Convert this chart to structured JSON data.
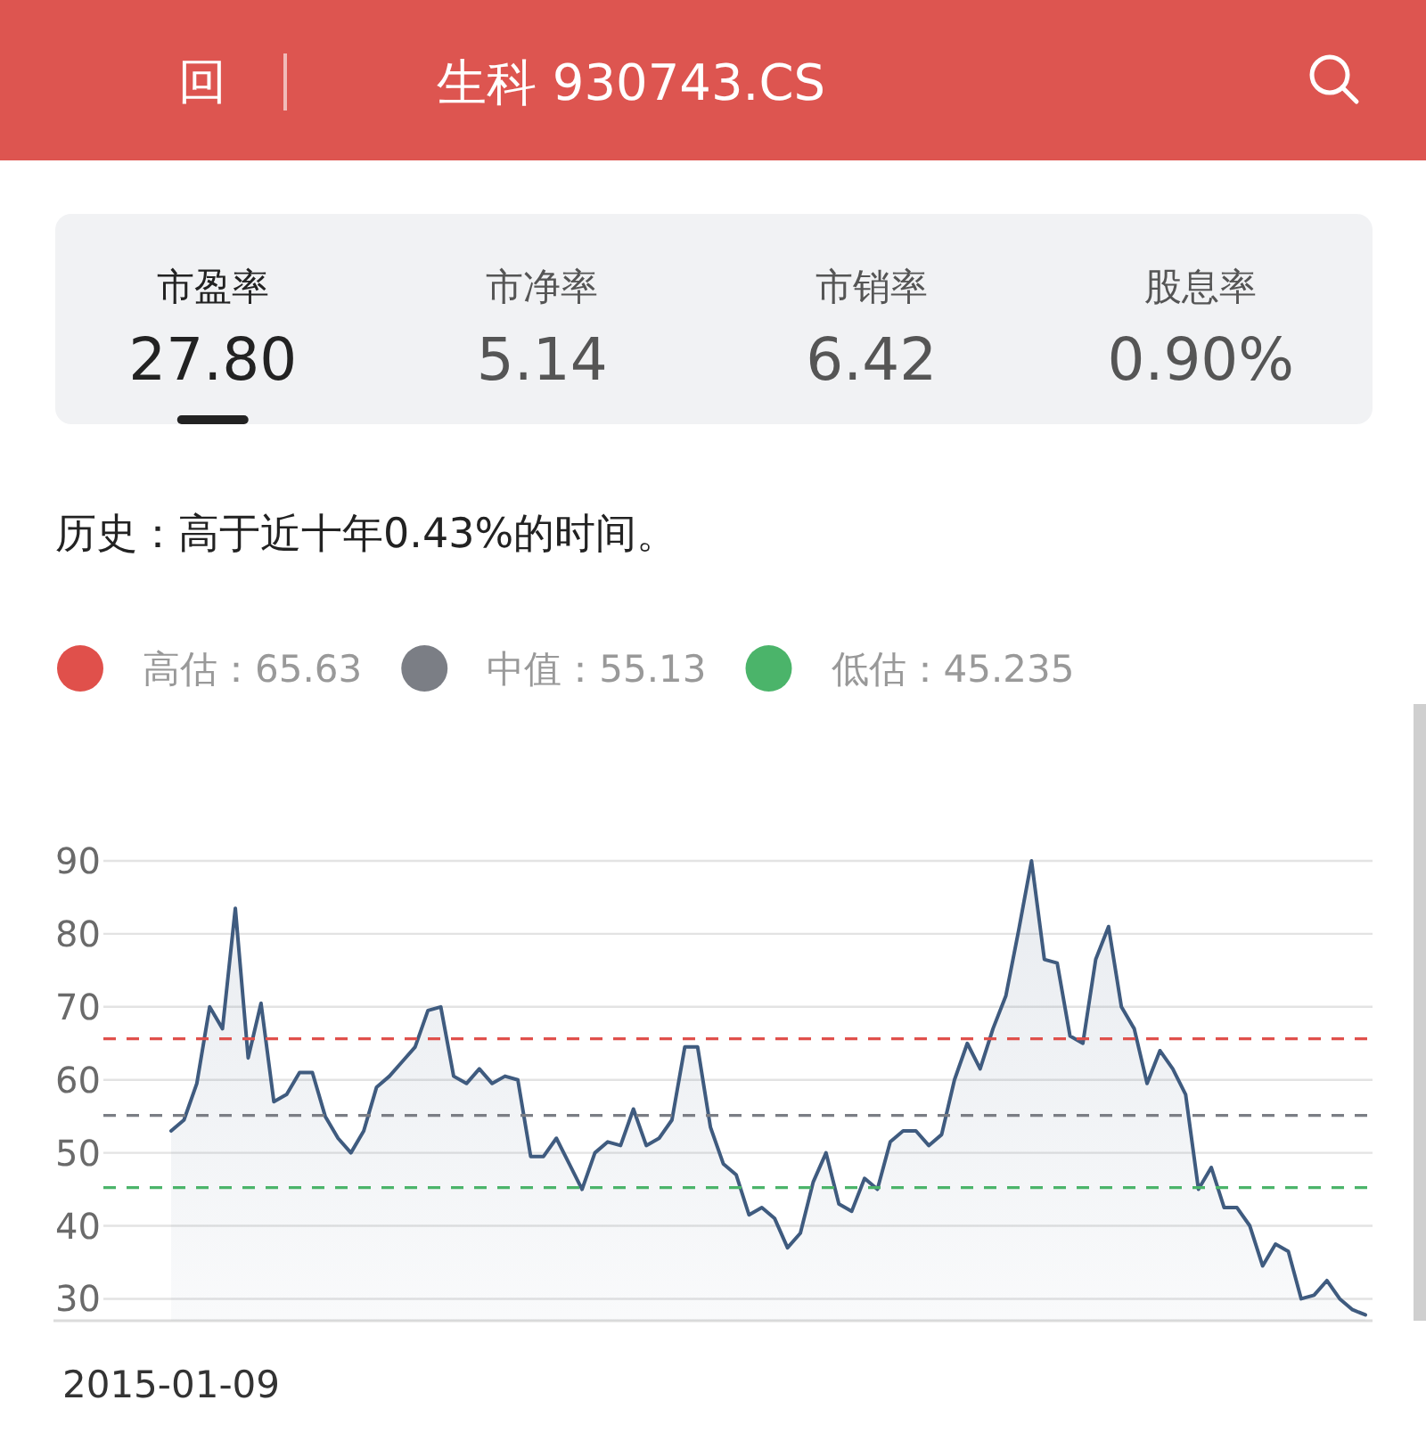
{
  "chart_data": {
    "type": "area",
    "title": "生科 930743.CS",
    "annotations": [
      "回",
      "市盈率",
      "27.80",
      "市净率",
      "5.14",
      "市销率",
      "6.42",
      "股息率",
      "0.90%",
      "历史：高于近十年0.43%的时间。"
    ],
    "categories": [
      "2015-01-09",
      null,
      null,
      null,
      null,
      null,
      null,
      null,
      null,
      null,
      null,
      null,
      null,
      null,
      null,
      null,
      null,
      null,
      null,
      null,
      null,
      null,
      null,
      null,
      null,
      null,
      null,
      null,
      null,
      null,
      null,
      null,
      null,
      null,
      null,
      null,
      null,
      null,
      null,
      null,
      null,
      null,
      null,
      null,
      null,
      null,
      null,
      null,
      null,
      null,
      null,
      null,
      null,
      null,
      null,
      null,
      null,
      null,
      null,
      null,
      null,
      null,
      null,
      null,
      null,
      null,
      null,
      null,
      null,
      null,
      null,
      null,
      null,
      null,
      null,
      null,
      null,
      null,
      null,
      null,
      null,
      null,
      null,
      null,
      null,
      null,
      null,
      null,
      null,
      null,
      null,
      null,
      null,
      null
    ],
    "series": [
      {
        "color": "#3f5b7f",
        "values": [
          53,
          54.5,
          59.5,
          70,
          67,
          83.5,
          63,
          70.5,
          57,
          58,
          61,
          61,
          55,
          52,
          50,
          53,
          59,
          60.5,
          62.5,
          64.5,
          69.5,
          70,
          60.5,
          59.5,
          61.5,
          59.5,
          60.5,
          60,
          49.5,
          49.5,
          52,
          48.5,
          45,
          50,
          51.5,
          51,
          56,
          51,
          52,
          54.5,
          64.5,
          64.5,
          53.5,
          48.5,
          47,
          41.5,
          42.5,
          41,
          37,
          39,
          46,
          50,
          43,
          42,
          46.5,
          45,
          51.5,
          53,
          53,
          51,
          52.5,
          60,
          65,
          61.5,
          67,
          71.5,
          80.5,
          90,
          76.5,
          76,
          66,
          65,
          76.5,
          81,
          70,
          67,
          59.5,
          64,
          61.5,
          58,
          45,
          48,
          42.5,
          42.5,
          40,
          34.5,
          37.5,
          36.5,
          30,
          30.5,
          32.5,
          30,
          28.5,
          27.8
        ]
      }
    ],
    "ylim": [
      27,
      90
    ],
    "yticks": [
      30,
      40,
      50,
      60,
      70,
      80,
      90
    ],
    "grid": "y",
    "legend": "top left",
    "ref_lines": [
      {
        "axis": "y",
        "value": 65.63,
        "label": "高估：65.63",
        "color": "#e0504b",
        "line_style": "dashed"
      },
      {
        "axis": "y",
        "value": 55.13,
        "label": "中值：55.13",
        "color": "#7b7e85",
        "line_style": "dashed"
      },
      {
        "axis": "y",
        "value": 45.235,
        "label": "低估：45.235",
        "color": "#4bb46a",
        "line_style": "dashed"
      }
    ]
  }
}
